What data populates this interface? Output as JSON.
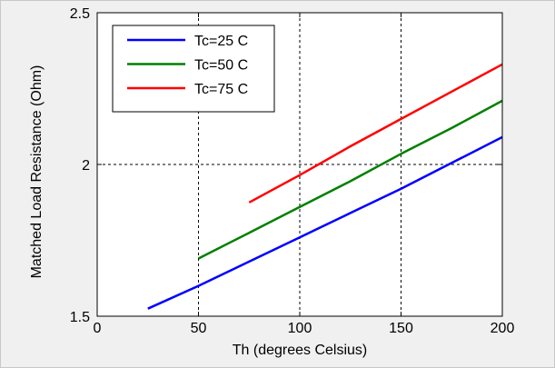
{
  "chart_data": {
    "type": "line",
    "title": "",
    "xlabel": "Th (degrees Celsius)",
    "ylabel": "Matched Load Resistance (Ohm)",
    "xlim": [
      0,
      200
    ],
    "ylim": [
      1.5,
      2.5
    ],
    "xticks": [
      0,
      50,
      100,
      150,
      200
    ],
    "yticks": [
      1.5,
      2,
      2.5
    ],
    "xtick_labels": [
      "0",
      "50",
      "100",
      "150",
      "200"
    ],
    "ytick_labels": [
      "1.5",
      "2",
      "2.5"
    ],
    "grid": true,
    "legend_position": "top-left",
    "series": [
      {
        "name": "Tc=25 C",
        "color": "#0000ff",
        "x": [
          25,
          50,
          75,
          100,
          125,
          150,
          175,
          200
        ],
        "y": [
          1.525,
          1.6,
          1.68,
          1.76,
          1.84,
          1.92,
          2.005,
          2.09
        ]
      },
      {
        "name": "Tc=50 C",
        "color": "#008000",
        "x": [
          50,
          75,
          100,
          125,
          150,
          175,
          200
        ],
        "y": [
          1.69,
          1.775,
          1.86,
          1.945,
          2.035,
          2.12,
          2.21
        ]
      },
      {
        "name": "Tc=75 C",
        "color": "#ff0000",
        "x": [
          75,
          100,
          125,
          150,
          175,
          200
        ],
        "y": [
          1.875,
          1.965,
          2.06,
          2.15,
          2.24,
          2.33
        ]
      }
    ]
  }
}
